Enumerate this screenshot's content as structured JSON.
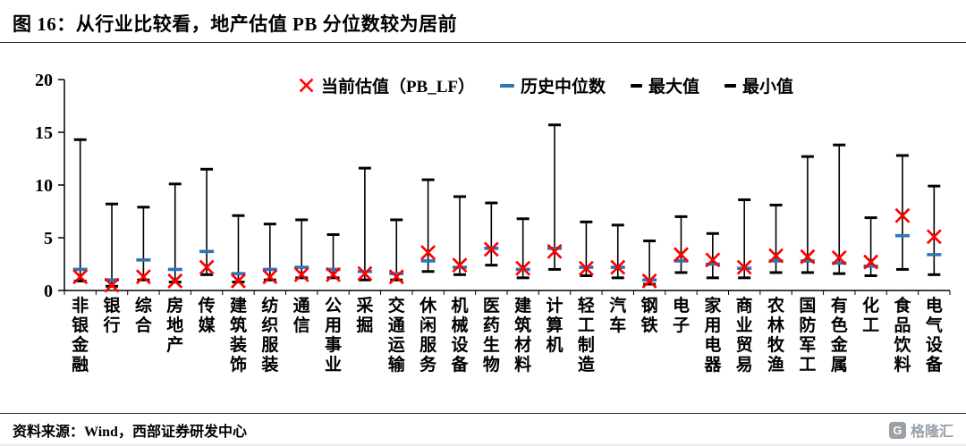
{
  "header": {
    "title": "图 16：从行业比较看，地产估值 PB 分位数较为居前"
  },
  "legend": {
    "items": [
      {
        "label": "当前估值（PB_LF）",
        "marker": "x",
        "color": "#ff0000"
      },
      {
        "label": "历史中位数",
        "marker": "dash",
        "color": "#2e75b6"
      },
      {
        "label": "最大值",
        "marker": "dash",
        "color": "#000000"
      },
      {
        "label": "最小值",
        "marker": "dash",
        "color": "#000000"
      }
    ]
  },
  "chart_data": {
    "type": "hilo-range",
    "title": "行业 PB 估值区间（最大值-最小值）与历史中位数、当前估值",
    "xlabel": "",
    "ylabel": "",
    "ylim": [
      0,
      20
    ],
    "yticks": [
      0,
      5,
      10,
      15,
      20
    ],
    "grid": false,
    "legend_position": "top-center",
    "categories": [
      "非银金融",
      "银行",
      "综合",
      "房地产",
      "传媒",
      "建筑装饰",
      "纺织服装",
      "通信",
      "公用事业",
      "采掘",
      "交通运输",
      "休闲服务",
      "机械设备",
      "医药生物",
      "建筑材料",
      "计算机",
      "轻工制造",
      "汽车",
      "钢铁",
      "电子",
      "家用电器",
      "商业贸易",
      "农林牧渔",
      "国防军工",
      "有色金属",
      "化工",
      "食品饮料",
      "电气设备"
    ],
    "series": [
      {
        "name": "最大值",
        "marker": "cap",
        "color": "#000000",
        "values": [
          14.3,
          8.2,
          7.9,
          10.1,
          11.5,
          7.1,
          6.3,
          6.7,
          5.3,
          11.6,
          6.7,
          10.5,
          8.9,
          8.3,
          6.8,
          15.7,
          6.5,
          6.2,
          4.7,
          7.0,
          5.4,
          8.6,
          8.1,
          12.7,
          13.8,
          6.9,
          12.8,
          9.9
        ]
      },
      {
        "name": "最小值",
        "marker": "cap",
        "color": "#000000",
        "values": [
          0.9,
          0.4,
          1.0,
          0.8,
          1.5,
          0.8,
          1.0,
          1.2,
          1.2,
          1.0,
          1.0,
          1.8,
          1.5,
          2.4,
          1.2,
          2.0,
          1.4,
          1.2,
          0.6,
          1.7,
          1.2,
          1.2,
          1.7,
          1.7,
          1.6,
          1.4,
          2.0,
          1.5
        ]
      },
      {
        "name": "历史中位数",
        "marker": "dash",
        "color": "#2e75b6",
        "values": [
          2.0,
          1.0,
          2.9,
          2.0,
          3.7,
          1.6,
          2.0,
          2.2,
          2.0,
          1.8,
          1.6,
          2.8,
          2.2,
          4.0,
          2.0,
          4.0,
          2.2,
          2.2,
          1.0,
          2.8,
          2.5,
          2.1,
          2.8,
          2.8,
          2.6,
          2.3,
          5.2,
          3.4
        ]
      },
      {
        "name": "当前估值（PB_LF）",
        "marker": "x",
        "color": "#ff0000",
        "values": [
          1.3,
          0.5,
          1.3,
          0.9,
          2.2,
          0.9,
          1.3,
          1.5,
          1.5,
          1.6,
          1.3,
          3.6,
          2.4,
          3.9,
          2.1,
          3.7,
          2.1,
          2.2,
          0.9,
          3.4,
          2.9,
          2.2,
          3.3,
          3.2,
          3.1,
          2.7,
          7.1,
          5.1
        ]
      }
    ]
  },
  "footer": {
    "source": "资料来源：Wind，西部证券研发中心",
    "logo_letter": "G",
    "logo_text": "格隆汇"
  }
}
